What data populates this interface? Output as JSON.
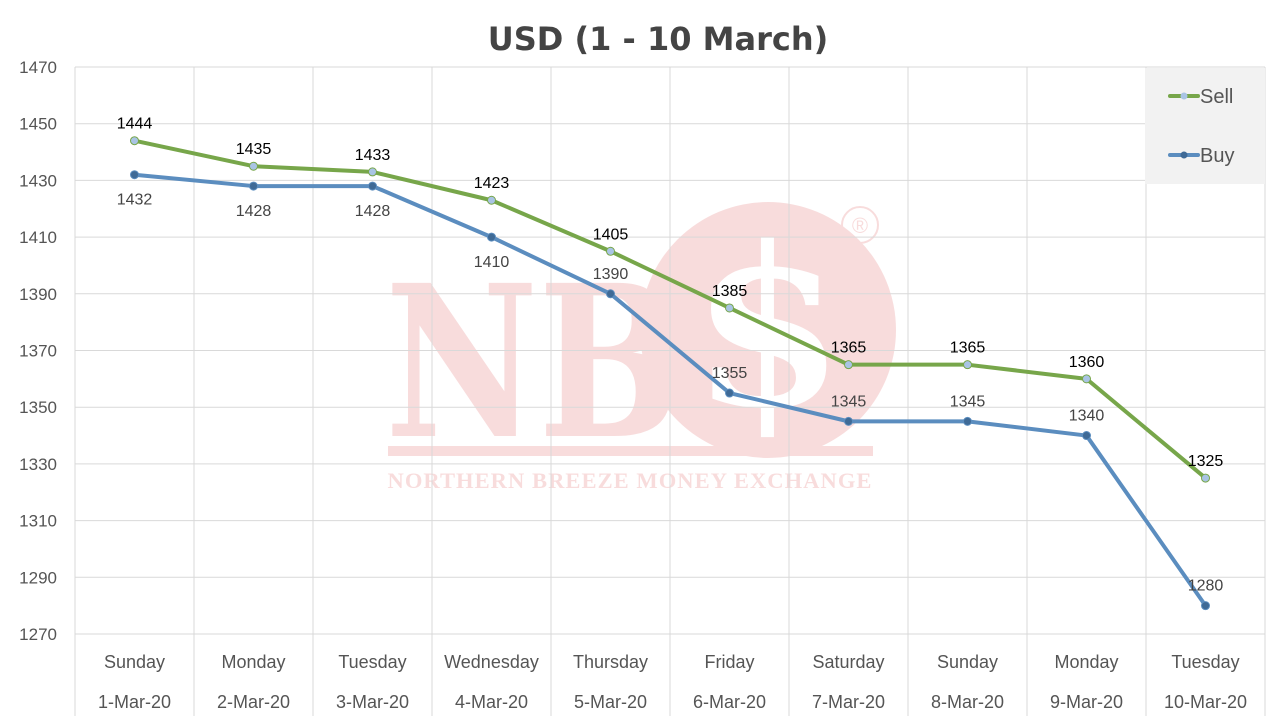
{
  "watermark": {
    "letters": "NB",
    "symbol": "$",
    "registered": "®",
    "subtitle": "NORTHERN BREEZE MONEY EXCHANGE",
    "color": "#e06666"
  },
  "chart_data": {
    "type": "line",
    "title": "USD (1 - 10 March)",
    "xlabel": "",
    "ylabel": "",
    "ylim": [
      1270,
      1470
    ],
    "yticks": [
      1270,
      1290,
      1310,
      1330,
      1350,
      1370,
      1390,
      1410,
      1430,
      1450,
      1470
    ],
    "grid": true,
    "legend": "top-right",
    "categories": [
      {
        "day": "Sunday",
        "date": "1-Mar-20"
      },
      {
        "day": "Monday",
        "date": "2-Mar-20"
      },
      {
        "day": "Tuesday",
        "date": "3-Mar-20"
      },
      {
        "day": "Wednesday",
        "date": "4-Mar-20"
      },
      {
        "day": "Thursday",
        "date": "5-Mar-20"
      },
      {
        "day": "Friday",
        "date": "6-Mar-20"
      },
      {
        "day": "Saturday",
        "date": "7-Mar-20"
      },
      {
        "day": "Sunday",
        "date": "8-Mar-20"
      },
      {
        "day": "Monday",
        "date": "9-Mar-20"
      },
      {
        "day": "Tuesday",
        "date": "10-Mar-20"
      }
    ],
    "series": [
      {
        "name": "Sell",
        "color": "#77a64a",
        "marker_color": "#a9c4e4",
        "label_color": "#000000",
        "values": [
          1444,
          1435,
          1433,
          1423,
          1405,
          1385,
          1365,
          1365,
          1360,
          1325
        ]
      },
      {
        "name": "Buy",
        "color": "#5b8dbf",
        "marker_color": "#3f6a96",
        "label_color": "#444444",
        "values": [
          1432,
          1428,
          1428,
          1410,
          1390,
          1355,
          1345,
          1345,
          1340,
          1280
        ]
      }
    ]
  }
}
